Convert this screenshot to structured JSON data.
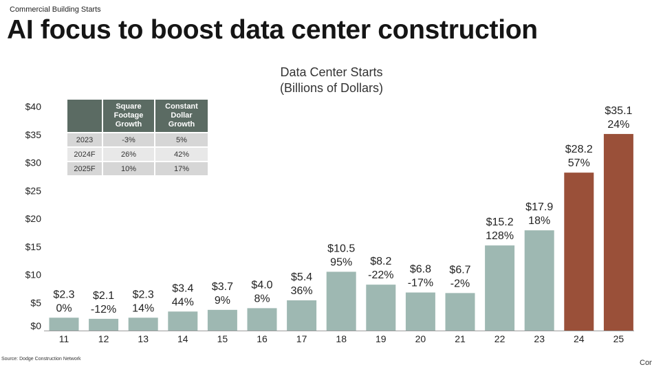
{
  "header": {
    "kicker": "Commercial Building Starts",
    "headline": "AI focus to boost data center construction"
  },
  "footer": {
    "source": "Source: Dodge Construction Network",
    "edge_text": "Con"
  },
  "table": {
    "columns": [
      "",
      "Square Footage Growth",
      "Constant Dollar Growth"
    ],
    "rows": [
      [
        "2023",
        "-3%",
        "5%"
      ],
      [
        "2024F",
        "26%",
        "42%"
      ],
      [
        "2025F",
        "10%",
        "17%"
      ]
    ]
  },
  "chart_data": {
    "type": "bar",
    "title": "Data Center Starts",
    "subtitle": "(Billions of Dollars)",
    "xlabel": "",
    "ylabel": "",
    "ylim": [
      0,
      40
    ],
    "yticks": [
      {
        "value": 0,
        "label": "$0"
      },
      {
        "value": 5,
        "label": "$5"
      },
      {
        "value": 10,
        "label": "$10"
      },
      {
        "value": 15,
        "label": "$15"
      },
      {
        "value": 20,
        "label": "$20"
      },
      {
        "value": 25,
        "label": "$25"
      },
      {
        "value": 30,
        "label": "$30"
      },
      {
        "value": 35,
        "label": "$35"
      },
      {
        "value": 40,
        "label": "$40"
      }
    ],
    "grid": false,
    "categories": [
      "11",
      "12",
      "13",
      "14",
      "15",
      "16",
      "17",
      "18",
      "19",
      "20",
      "21",
      "22",
      "23",
      "24",
      "25"
    ],
    "values": [
      2.3,
      2.1,
      2.3,
      3.4,
      3.7,
      4.0,
      5.4,
      10.5,
      8.2,
      6.8,
      6.7,
      15.2,
      17.9,
      28.2,
      35.1
    ],
    "value_labels": [
      "$2.3",
      "$2.1",
      "$2.3",
      "$3.4",
      "$3.7",
      "$4.0",
      "$5.4",
      "$10.5",
      "$8.2",
      "$6.8",
      "$6.7",
      "$15.2",
      "$17.9",
      "$28.2",
      "$35.1"
    ],
    "growth_labels": [
      "0%",
      "-12%",
      "14%",
      "44%",
      "9%",
      "8%",
      "36%",
      "95%",
      "-22%",
      "-17%",
      "-2%",
      "128%",
      "18%",
      "57%",
      "24%"
    ],
    "forecast": [
      false,
      false,
      false,
      false,
      false,
      false,
      false,
      false,
      false,
      false,
      false,
      false,
      false,
      true,
      true
    ],
    "colors": {
      "actual": "#9eb8b2",
      "forecast": "#9a5039"
    }
  }
}
